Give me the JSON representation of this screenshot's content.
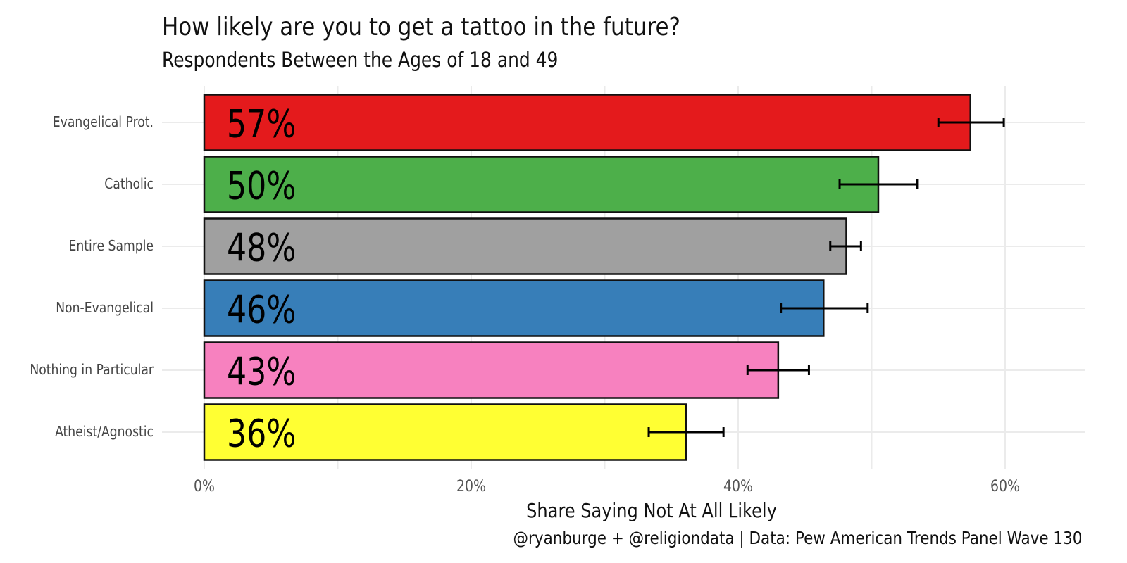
{
  "chart_data": {
    "type": "bar",
    "orientation": "horizontal",
    "title": "How likely are you to get a tattoo in the future?",
    "subtitle": "Respondents Between the Ages of 18 and 49",
    "xlabel": "Share Saying Not At All Likely",
    "ylabel": "",
    "caption": "@ryanburge + @religiondata | Data: Pew American Trends Panel Wave 130",
    "xlim": [
      0,
      0.66
    ],
    "x_ticks": [
      0,
      0.2,
      0.4,
      0.6
    ],
    "x_tick_labels": [
      "0%",
      "20%",
      "40%",
      "60%"
    ],
    "grid": true,
    "legend": "none",
    "categories": [
      "Evangelical Prot.",
      "Catholic",
      "Entire Sample",
      "Non-Evangelical",
      "Nothing in Particular",
      "Atheist/Agnostic"
    ],
    "values": [
      0.574,
      0.505,
      0.481,
      0.464,
      0.43,
      0.361
    ],
    "value_labels": [
      "57%",
      "50%",
      "48%",
      "46%",
      "43%",
      "36%"
    ],
    "error_low": [
      0.55,
      0.476,
      0.469,
      0.432,
      0.407,
      0.333
    ],
    "error_high": [
      0.599,
      0.534,
      0.492,
      0.497,
      0.453,
      0.389
    ],
    "colors": [
      "#e41a1c",
      "#4daf4a",
      "#a0a0a0",
      "#377eb8",
      "#f781bf",
      "#ffff33"
    ]
  }
}
